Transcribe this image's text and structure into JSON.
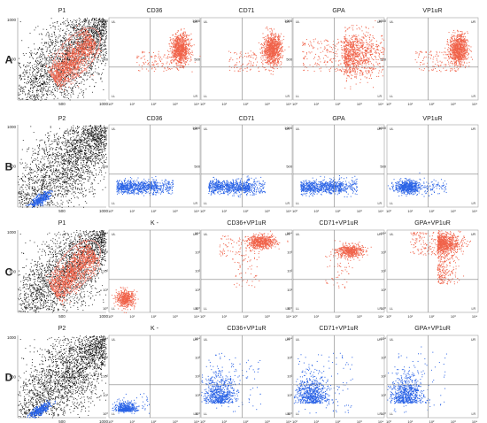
{
  "figure": {
    "row_letters": [
      "A",
      "B",
      "C",
      "D"
    ],
    "colors": {
      "red": "#f0634a",
      "blue": "#2a63e6",
      "black": "#111111",
      "gate_outline": "#f08a80",
      "quad_line": "#808080",
      "frame": "#a0a0a0"
    },
    "rows": [
      {
        "letter": "A",
        "gate": {
          "label": "P1",
          "gate_name": "P1",
          "ticks": [
            "0",
            "500",
            "1000"
          ],
          "cluster_color": "red"
        },
        "panels": [
          {
            "title": "CD36",
            "pattern": "red_upper_right",
            "y_ticks": [
              "1000",
              "500"
            ],
            "x_ticks": [
              "10⁰",
              "10¹",
              "10²",
              "10³",
              "10⁴"
            ],
            "quadrants": [
              "UL",
              "UR",
              "LL",
              "LR"
            ]
          },
          {
            "title": "CD71",
            "pattern": "red_upper_right",
            "y_ticks": [
              "1000",
              "500"
            ],
            "x_ticks": [
              "10⁰",
              "10¹",
              "10²",
              "10³",
              "10⁴"
            ],
            "quadrants": [
              "UL",
              "UR",
              "LL",
              "LR"
            ]
          },
          {
            "title": "GPA",
            "pattern": "red_spread_right",
            "y_ticks": [
              "1000",
              "500"
            ],
            "x_ticks": [
              "10⁰",
              "10¹",
              "10²",
              "10³",
              "10⁴"
            ],
            "quadrants": [
              "UL",
              "UR",
              "LL",
              "LR"
            ]
          },
          {
            "title": "VP1uR",
            "pattern": "red_upper_right",
            "y_ticks": [
              "1000",
              "500"
            ],
            "x_ticks": [
              "10⁰",
              "10¹",
              "10²",
              "10³",
              "10⁴"
            ],
            "quadrants": [
              "UL",
              "UR",
              "LL",
              "LR"
            ]
          }
        ]
      },
      {
        "letter": "B",
        "gate": {
          "label": "P2",
          "gate_name": "",
          "ticks": [
            "0",
            "500",
            "1000"
          ],
          "cluster_color": "blue"
        },
        "panels": [
          {
            "title": "CD36",
            "pattern": "blue_low_band",
            "y_ticks": [
              "1000",
              "500"
            ],
            "x_ticks": [
              "10⁰",
              "10¹",
              "10²",
              "10³",
              "10⁴"
            ],
            "quadrants": [
              "UL",
              "UR",
              "LL",
              "LR"
            ]
          },
          {
            "title": "CD71",
            "pattern": "blue_low_band",
            "y_ticks": [
              "1000",
              "500"
            ],
            "x_ticks": [
              "10⁰",
              "10¹",
              "10²",
              "10³",
              "10⁴"
            ],
            "quadrants": [
              "UL",
              "UR",
              "LL",
              "LR"
            ]
          },
          {
            "title": "GPA",
            "pattern": "blue_low_band",
            "y_ticks": [
              "1000",
              "500"
            ],
            "x_ticks": [
              "10⁰",
              "10¹",
              "10²",
              "10³",
              "10⁴"
            ],
            "quadrants": [
              "UL",
              "UR",
              "LL",
              "LR"
            ]
          },
          {
            "title": "VP1uR",
            "pattern": "blue_low_band_short",
            "y_ticks": [
              "1000",
              "500"
            ],
            "x_ticks": [
              "10⁰",
              "10¹",
              "10²",
              "10³",
              "10⁴"
            ],
            "quadrants": [
              "UL",
              "UR",
              "LL",
              "LR"
            ]
          }
        ]
      },
      {
        "letter": "C",
        "gate": {
          "label": "P1",
          "gate_name": "P1",
          "ticks": [
            "0",
            "500",
            "1000"
          ],
          "cluster_color": "red"
        },
        "panels": [
          {
            "title": "K -",
            "pattern": "red_low_left",
            "y_ticks": [
              "10⁴",
              "10³",
              "10²",
              "10¹",
              "10⁰"
            ],
            "x_ticks": [
              "10⁰",
              "10¹",
              "10²",
              "10³",
              "10⁴"
            ],
            "quadrants": [
              "UL",
              "UR",
              "LL",
              "LR"
            ]
          },
          {
            "title": "CD36+VP1uR",
            "pattern": "red_top_cluster",
            "y_ticks": [
              "10⁴",
              "10³",
              "10²",
              "10¹",
              "10⁰"
            ],
            "x_ticks": [
              "10⁰",
              "10¹",
              "10²",
              "10³",
              "10⁴"
            ],
            "quadrants": [
              "UL",
              "UR",
              "LL",
              "LR"
            ]
          },
          {
            "title": "CD71+VP1uR",
            "pattern": "red_mid_cluster",
            "y_ticks": [
              "10⁴",
              "10³",
              "10²",
              "10¹",
              "10⁰"
            ],
            "x_ticks": [
              "10⁰",
              "10¹",
              "10²",
              "10³",
              "10⁴"
            ],
            "quadrants": [
              "UL",
              "UR",
              "LL",
              "LR"
            ]
          },
          {
            "title": "GPA+VP1uR",
            "pattern": "red_top_spread",
            "y_ticks": [
              "10⁴",
              "10³",
              "10²",
              "10¹",
              "10⁰"
            ],
            "x_ticks": [
              "10⁰",
              "10¹",
              "10²",
              "10³",
              "10⁴"
            ],
            "quadrants": [
              "UL",
              "UR",
              "LL",
              "LR"
            ]
          }
        ]
      },
      {
        "letter": "D",
        "gate": {
          "label": "P2",
          "gate_name": "",
          "ticks": [
            "0",
            "500",
            "1000"
          ],
          "cluster_color": "blue"
        },
        "panels": [
          {
            "title": "K -",
            "pattern": "blue_low_left",
            "y_ticks": [
              "10⁴",
              "10³",
              "10²",
              "10¹",
              "10⁰"
            ],
            "x_ticks": [
              "10⁰",
              "10¹",
              "10²",
              "10³",
              "10⁴"
            ],
            "quadrants": [
              "UL",
              "UR",
              "LL",
              "LR"
            ]
          },
          {
            "title": "CD36+VP1uR",
            "pattern": "blue_scatter_lowleft",
            "y_ticks": [
              "10⁴",
              "10³",
              "10²",
              "10¹",
              "10⁰"
            ],
            "x_ticks": [
              "10⁰",
              "10¹",
              "10²",
              "10³",
              "10⁴"
            ],
            "quadrants": [
              "UL",
              "UR",
              "LL",
              "LR"
            ]
          },
          {
            "title": "CD71+VP1uR",
            "pattern": "blue_scatter_lowleft",
            "y_ticks": [
              "10⁴",
              "10³",
              "10²",
              "10¹",
              "10⁰"
            ],
            "x_ticks": [
              "10⁰",
              "10¹",
              "10²",
              "10³",
              "10⁴"
            ],
            "quadrants": [
              "UL",
              "UR",
              "LL",
              "LR"
            ]
          },
          {
            "title": "GPA+VP1uR",
            "pattern": "blue_scatter_lowleft",
            "y_ticks": [
              "10⁴",
              "10³",
              "10²",
              "10¹",
              "10⁰"
            ],
            "x_ticks": [
              "10⁰",
              "10¹",
              "10²",
              "10³",
              "10⁴"
            ],
            "quadrants": [
              "UL",
              "UR",
              "LL",
              "LR"
            ]
          }
        ]
      }
    ]
  },
  "chart_data": [
    {
      "type": "scatter",
      "panel": "A-P1",
      "title": "P1",
      "xlim": [
        0,
        1000
      ],
      "ylim": [
        0,
        1000
      ],
      "gate": "P1",
      "gated_population": "red"
    },
    {
      "type": "scatter",
      "panel": "A-CD36",
      "title": "CD36",
      "x_scale": "log",
      "xlim": [
        1,
        10000
      ],
      "ylim": [
        0,
        1000
      ],
      "population_quadrant": "UR"
    },
    {
      "type": "scatter",
      "panel": "A-CD71",
      "title": "CD71",
      "x_scale": "log",
      "xlim": [
        1,
        10000
      ],
      "ylim": [
        0,
        1000
      ],
      "population_quadrant": "UR"
    },
    {
      "type": "scatter",
      "panel": "A-GPA",
      "title": "GPA",
      "x_scale": "log",
      "xlim": [
        1,
        10000
      ],
      "ylim": [
        0,
        1000
      ],
      "population_quadrant": "UR"
    },
    {
      "type": "scatter",
      "panel": "A-VP1uR",
      "title": "VP1uR",
      "x_scale": "log",
      "xlim": [
        1,
        10000
      ],
      "ylim": [
        0,
        1000
      ],
      "population_quadrant": "UR"
    },
    {
      "type": "scatter",
      "panel": "B-P2",
      "title": "P2",
      "xlim": [
        0,
        1000
      ],
      "ylim": [
        0,
        1000
      ],
      "gated_population": "blue"
    },
    {
      "type": "scatter",
      "panel": "B-CD36",
      "title": "CD36",
      "x_scale": "log",
      "xlim": [
        1,
        10000
      ],
      "ylim": [
        0,
        1000
      ],
      "population_quadrant": "LL"
    },
    {
      "type": "scatter",
      "panel": "B-CD71",
      "title": "CD71",
      "x_scale": "log",
      "xlim": [
        1,
        10000
      ],
      "ylim": [
        0,
        1000
      ],
      "population_quadrant": "LL"
    },
    {
      "type": "scatter",
      "panel": "B-GPA",
      "title": "GPA",
      "x_scale": "log",
      "xlim": [
        1,
        10000
      ],
      "ylim": [
        0,
        1000
      ],
      "population_quadrant": "LL"
    },
    {
      "type": "scatter",
      "panel": "B-VP1uR",
      "title": "VP1uR",
      "x_scale": "log",
      "xlim": [
        1,
        10000
      ],
      "ylim": [
        0,
        1000
      ],
      "population_quadrant": "LL"
    },
    {
      "type": "scatter",
      "panel": "C-P1",
      "title": "P1",
      "xlim": [
        0,
        1000
      ],
      "ylim": [
        0,
        1000
      ],
      "gate": "P1",
      "gated_population": "red"
    },
    {
      "type": "scatter",
      "panel": "C-K",
      "title": "K -",
      "x_scale": "log",
      "y_scale": "log",
      "xlim": [
        1,
        10000
      ],
      "ylim": [
        1,
        10000
      ],
      "population_quadrant": "LL"
    },
    {
      "type": "scatter",
      "panel": "C-CD36+VP1uR",
      "title": "CD36+VP1uR",
      "x_scale": "log",
      "y_scale": "log",
      "xlim": [
        1,
        10000
      ],
      "ylim": [
        1,
        10000
      ],
      "population_quadrant": "UR"
    },
    {
      "type": "scatter",
      "panel": "C-CD71+VP1uR",
      "title": "CD71+VP1uR",
      "x_scale": "log",
      "y_scale": "log",
      "xlim": [
        1,
        10000
      ],
      "ylim": [
        1,
        10000
      ],
      "population_quadrant": "UR"
    },
    {
      "type": "scatter",
      "panel": "C-GPA+VP1uR",
      "title": "GPA+VP1uR",
      "x_scale": "log",
      "y_scale": "log",
      "xlim": [
        1,
        10000
      ],
      "ylim": [
        1,
        10000
      ],
      "population_quadrant": "UR"
    },
    {
      "type": "scatter",
      "panel": "D-P2",
      "title": "P2",
      "xlim": [
        0,
        1000
      ],
      "ylim": [
        0,
        1000
      ],
      "gated_population": "blue"
    },
    {
      "type": "scatter",
      "panel": "D-K",
      "title": "K -",
      "x_scale": "log",
      "y_scale": "log",
      "xlim": [
        1,
        10000
      ],
      "ylim": [
        1,
        10000
      ],
      "population_quadrant": "LL"
    },
    {
      "type": "scatter",
      "panel": "D-CD36+VP1uR",
      "title": "CD36+VP1uR",
      "x_scale": "log",
      "y_scale": "log",
      "xlim": [
        1,
        10000
      ],
      "ylim": [
        1,
        10000
      ],
      "population_quadrant": "LL"
    },
    {
      "type": "scatter",
      "panel": "D-CD71+VP1uR",
      "title": "CD71+VP1uR",
      "x_scale": "log",
      "y_scale": "log",
      "xlim": [
        1,
        10000
      ],
      "ylim": [
        1,
        10000
      ],
      "population_quadrant": "LL"
    },
    {
      "type": "scatter",
      "panel": "D-GPA+VP1uR",
      "title": "GPA+VP1uR",
      "x_scale": "log",
      "y_scale": "log",
      "xlim": [
        1,
        10000
      ],
      "ylim": [
        1,
        10000
      ],
      "population_quadrant": "LL"
    }
  ]
}
